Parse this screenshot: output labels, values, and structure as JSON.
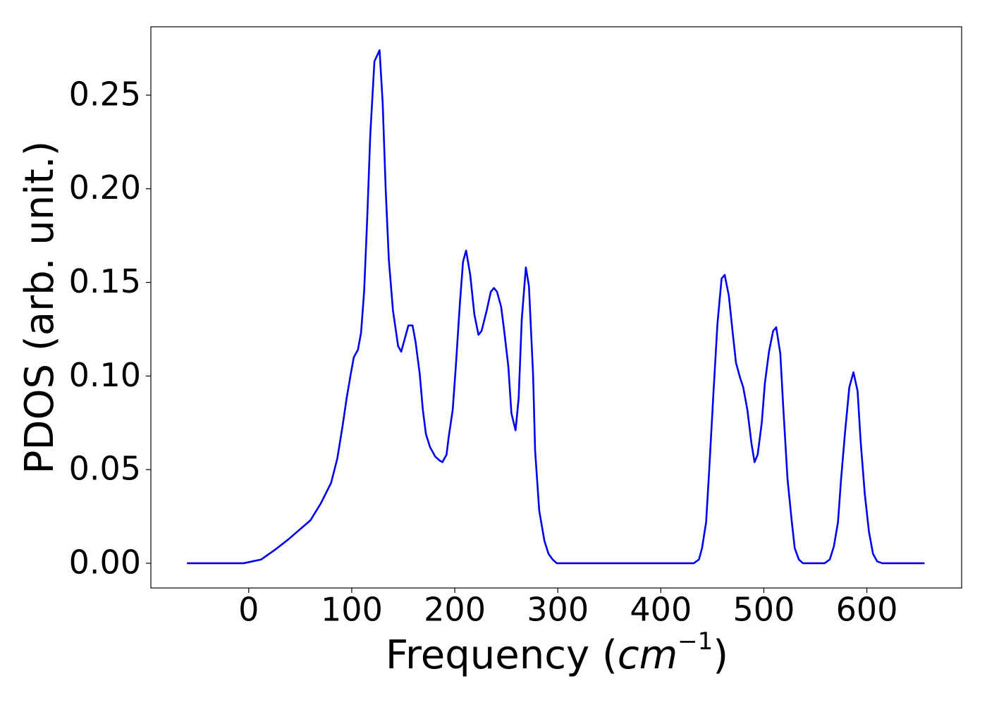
{
  "chart_data": {
    "type": "line",
    "xlabel": [
      "Frequency (",
      "cm",
      "−1",
      ")"
    ],
    "ylabel": "PDOS (arb. unit.)",
    "xlim": [
      -95,
      692
    ],
    "ylim": [
      -0.0132,
      0.2865
    ],
    "xticks": [
      0,
      100,
      200,
      300,
      400,
      500,
      600
    ],
    "yticks": [
      {
        "value": 0,
        "label": "0.00"
      },
      {
        "value": 0.05,
        "label": "0.05"
      },
      {
        "value": 0.1,
        "label": "0.10"
      },
      {
        "value": 0.15,
        "label": "0.15"
      },
      {
        "value": 0.2,
        "label": "0.20"
      },
      {
        "value": 0.25,
        "label": "0.25"
      }
    ],
    "series": [
      {
        "color": "#0000ee",
        "x": [
          -60,
          -5,
          12,
          25,
          39,
          60,
          70,
          80,
          86,
          91,
          95,
          99,
          102,
          106,
          109,
          112,
          115,
          118,
          122,
          127,
          130,
          133,
          136,
          140,
          145,
          148,
          155,
          159,
          162,
          166,
          169,
          172,
          176,
          181,
          185,
          188,
          192,
          194,
          198,
          201,
          205,
          208,
          211,
          215,
          219,
          223,
          226,
          231,
          235,
          238,
          241,
          245,
          248,
          252,
          255,
          259,
          262,
          265,
          269,
          272,
          276,
          278,
          282,
          287,
          291,
          295,
          299,
          306,
          432,
          437,
          440,
          444,
          447,
          451,
          455,
          459,
          462,
          466,
          470,
          473,
          477,
          480,
          484,
          488,
          491,
          494,
          498,
          501,
          505,
          509,
          512,
          516,
          519,
          523,
          527,
          530,
          534,
          538,
          559,
          564,
          568,
          572,
          575,
          579,
          583,
          587,
          591,
          594,
          598,
          602,
          606,
          610,
          615,
          656
        ],
        "values": [
          0,
          0,
          0.002,
          0.007,
          0.013,
          0.023,
          0.032,
          0.043,
          0.056,
          0.073,
          0.088,
          0.101,
          0.11,
          0.114,
          0.123,
          0.145,
          0.184,
          0.229,
          0.268,
          0.274,
          0.246,
          0.199,
          0.162,
          0.135,
          0.116,
          0.113,
          0.127,
          0.127,
          0.118,
          0.101,
          0.082,
          0.069,
          0.062,
          0.057,
          0.055,
          0.054,
          0.058,
          0.067,
          0.082,
          0.105,
          0.139,
          0.161,
          0.167,
          0.154,
          0.133,
          0.122,
          0.124,
          0.135,
          0.145,
          0.147,
          0.145,
          0.137,
          0.124,
          0.105,
          0.08,
          0.071,
          0.088,
          0.13,
          0.158,
          0.148,
          0.101,
          0.06,
          0.028,
          0.012,
          0.005,
          0.002,
          0,
          0,
          0,
          0.002,
          0.008,
          0.022,
          0.05,
          0.09,
          0.128,
          0.152,
          0.154,
          0.143,
          0.122,
          0.107,
          0.099,
          0.094,
          0.082,
          0.064,
          0.054,
          0.058,
          0.075,
          0.096,
          0.113,
          0.124,
          0.126,
          0.112,
          0.082,
          0.045,
          0.023,
          0.008,
          0.002,
          0,
          0,
          0.002,
          0.009,
          0.022,
          0.045,
          0.071,
          0.094,
          0.102,
          0.092,
          0.065,
          0.037,
          0.017,
          0.005,
          0.001,
          0,
          0
        ]
      }
    ]
  }
}
